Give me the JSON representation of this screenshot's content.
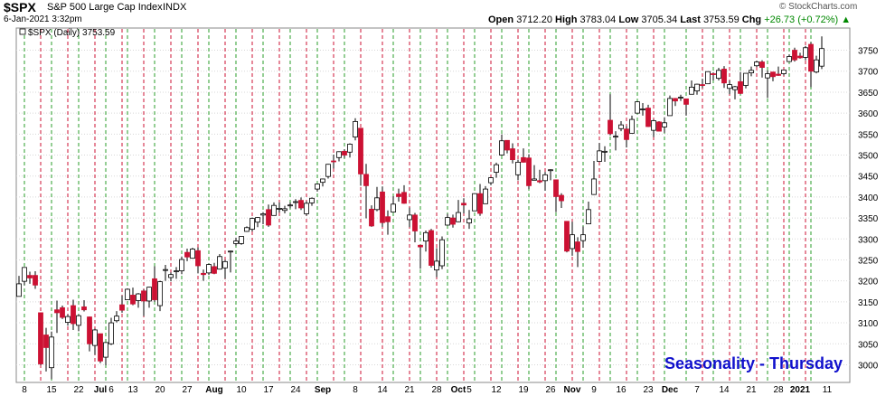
{
  "header": {
    "symbol": "$SPX",
    "name": "S&P 500 Large Cap Index",
    "exchange": "INDX",
    "datetime": "6-Jan-2021 3:32pm",
    "watermark": "© StockCharts.com",
    "ohlc": {
      "open_label": "Open",
      "open": "3712.20",
      "high_label": "High",
      "high": "3783.04",
      "low_label": "Low",
      "low": "3705.34",
      "last_label": "Last",
      "last": "3753.59",
      "chg_label": "Chg",
      "chg": "+26.73 (+0.72%)"
    }
  },
  "chart_data": {
    "type": "candlestick",
    "legend": "$SPX (Daily) 3753.59",
    "annotation": "Seasonality - Thursday",
    "ylim": [
      2960,
      3790
    ],
    "yticks": [
      3000,
      3050,
      3100,
      3150,
      3200,
      3250,
      3300,
      3350,
      3400,
      3450,
      3500,
      3550,
      3600,
      3650,
      3700,
      3750
    ],
    "xtick_labels": [
      "8",
      "15",
      "22",
      "Jul",
      "6",
      "13",
      "20",
      "27",
      "Aug",
      "10",
      "17",
      "24",
      "Sep",
      "8",
      "14",
      "21",
      "28",
      "Oct",
      "5",
      "12",
      "19",
      "26",
      "Nov",
      "9",
      "16",
      "23",
      "Dec",
      "7",
      "14",
      "21",
      "28",
      "2021",
      "11"
    ],
    "colors": {
      "up": "#ffffff",
      "down": "#cc1133",
      "thursday_line": "#cc1133",
      "other_line": "#2a9d2a",
      "annotation": "#1010cc"
    },
    "candles": [
      {
        "date": "2020-06-05",
        "o": 3163,
        "h": 3212,
        "l": 3163,
        "c": 3193
      },
      {
        "date": "2020-06-08",
        "o": 3199,
        "h": 3232,
        "l": 3190,
        "c": 3232
      },
      {
        "date": "2020-06-09",
        "o": 3213,
        "h": 3222,
        "l": 3193,
        "c": 3207
      },
      {
        "date": "2020-06-10",
        "o": 3213,
        "h": 3223,
        "l": 3181,
        "c": 3190
      },
      {
        "date": "2020-06-11",
        "o": 3124,
        "h": 3124,
        "l": 2999,
        "c": 3002
      },
      {
        "date": "2020-06-12",
        "o": 3071,
        "h": 3088,
        "l": 2984,
        "c": 3041
      },
      {
        "date": "2020-06-15",
        "o": 2993,
        "h": 3079,
        "l": 2966,
        "c": 3066
      },
      {
        "date": "2020-06-16",
        "o": 3131,
        "h": 3153,
        "l": 3076,
        "c": 3124
      },
      {
        "date": "2020-06-17",
        "o": 3136,
        "h": 3141,
        "l": 3109,
        "c": 3113
      },
      {
        "date": "2020-06-18",
        "o": 3101,
        "h": 3120,
        "l": 3093,
        "c": 3115
      },
      {
        "date": "2020-06-19",
        "o": 3141,
        "h": 3155,
        "l": 3083,
        "c": 3098
      },
      {
        "date": "2020-06-22",
        "o": 3094,
        "h": 3120,
        "l": 3080,
        "c": 3117
      },
      {
        "date": "2020-06-23",
        "o": 3138,
        "h": 3154,
        "l": 3127,
        "c": 3131
      },
      {
        "date": "2020-06-24",
        "o": 3114,
        "h": 3115,
        "l": 3032,
        "c": 3050
      },
      {
        "date": "2020-06-25",
        "o": 3046,
        "h": 3086,
        "l": 3024,
        "c": 3083
      },
      {
        "date": "2020-06-26",
        "o": 3074,
        "h": 3074,
        "l": 3004,
        "c": 3009
      },
      {
        "date": "2020-06-29",
        "o": 3018,
        "h": 3053,
        "l": 2999,
        "c": 3053
      },
      {
        "date": "2020-06-30",
        "o": 3050,
        "h": 3112,
        "l": 3047,
        "c": 3100
      },
      {
        "date": "2020-07-01",
        "o": 3105,
        "h": 3128,
        "l": 3101,
        "c": 3116
      },
      {
        "date": "2020-07-02",
        "o": 3143,
        "h": 3165,
        "l": 3124,
        "c": 3130
      },
      {
        "date": "2020-07-06",
        "o": 3155,
        "h": 3182,
        "l": 3155,
        "c": 3180
      },
      {
        "date": "2020-07-07",
        "o": 3166,
        "h": 3184,
        "l": 3142,
        "c": 3145
      },
      {
        "date": "2020-07-08",
        "o": 3153,
        "h": 3171,
        "l": 3136,
        "c": 3169
      },
      {
        "date": "2020-07-09",
        "o": 3176,
        "h": 3180,
        "l": 3116,
        "c": 3152
      },
      {
        "date": "2020-07-10",
        "o": 3152,
        "h": 3186,
        "l": 3136,
        "c": 3185
      },
      {
        "date": "2020-07-13",
        "o": 3205,
        "h": 3235,
        "l": 3150,
        "c": 3155
      },
      {
        "date": "2020-07-14",
        "o": 3141,
        "h": 3200,
        "l": 3128,
        "c": 3198
      },
      {
        "date": "2020-07-15",
        "o": 3225,
        "h": 3238,
        "l": 3200,
        "c": 3227
      },
      {
        "date": "2020-07-16",
        "o": 3208,
        "h": 3220,
        "l": 3199,
        "c": 3215
      },
      {
        "date": "2020-07-17",
        "o": 3224,
        "h": 3233,
        "l": 3205,
        "c": 3224
      },
      {
        "date": "2020-07-20",
        "o": 3224,
        "h": 3258,
        "l": 3216,
        "c": 3251
      },
      {
        "date": "2020-07-21",
        "o": 3268,
        "h": 3277,
        "l": 3247,
        "c": 3257
      },
      {
        "date": "2020-07-22",
        "o": 3254,
        "h": 3279,
        "l": 3253,
        "c": 3276
      },
      {
        "date": "2020-07-23",
        "o": 3272,
        "h": 3280,
        "l": 3218,
        "c": 3236
      },
      {
        "date": "2020-07-24",
        "o": 3218,
        "h": 3227,
        "l": 3200,
        "c": 3215
      },
      {
        "date": "2020-07-27",
        "o": 3219,
        "h": 3241,
        "l": 3214,
        "c": 3239
      },
      {
        "date": "2020-07-28",
        "o": 3234,
        "h": 3243,
        "l": 3216,
        "c": 3218
      },
      {
        "date": "2020-07-29",
        "o": 3228,
        "h": 3264,
        "l": 3227,
        "c": 3258
      },
      {
        "date": "2020-07-30",
        "o": 3231,
        "h": 3250,
        "l": 3205,
        "c": 3246
      },
      {
        "date": "2020-07-31",
        "o": 3270,
        "h": 3272,
        "l": 3220,
        "c": 3271
      },
      {
        "date": "2020-08-03",
        "o": 3289,
        "h": 3303,
        "l": 3284,
        "c": 3295
      },
      {
        "date": "2020-08-04",
        "o": 3289,
        "h": 3306,
        "l": 3286,
        "c": 3306
      },
      {
        "date": "2020-08-05",
        "o": 3318,
        "h": 3330,
        "l": 3317,
        "c": 3327
      },
      {
        "date": "2020-08-06",
        "o": 3323,
        "h": 3351,
        "l": 3318,
        "c": 3349
      },
      {
        "date": "2020-08-07",
        "o": 3340,
        "h": 3352,
        "l": 3328,
        "c": 3351
      },
      {
        "date": "2020-08-10",
        "o": 3357,
        "h": 3364,
        "l": 3335,
        "c": 3360
      },
      {
        "date": "2020-08-11",
        "o": 3370,
        "h": 3382,
        "l": 3329,
        "c": 3333
      },
      {
        "date": "2020-08-12",
        "o": 3356,
        "h": 3387,
        "l": 3356,
        "c": 3380
      },
      {
        "date": "2020-08-13",
        "o": 3373,
        "h": 3387,
        "l": 3363,
        "c": 3373
      },
      {
        "date": "2020-08-14",
        "o": 3368,
        "h": 3379,
        "l": 3361,
        "c": 3372
      },
      {
        "date": "2020-08-17",
        "o": 3380,
        "h": 3387,
        "l": 3373,
        "c": 3381
      },
      {
        "date": "2020-08-18",
        "o": 3388,
        "h": 3395,
        "l": 3371,
        "c": 3389
      },
      {
        "date": "2020-08-19",
        "o": 3392,
        "h": 3399,
        "l": 3369,
        "c": 3374
      },
      {
        "date": "2020-08-20",
        "o": 3360,
        "h": 3390,
        "l": 3355,
        "c": 3385
      },
      {
        "date": "2020-08-21",
        "o": 3386,
        "h": 3399,
        "l": 3379,
        "c": 3397
      },
      {
        "date": "2020-08-24",
        "o": 3419,
        "h": 3432,
        "l": 3413,
        "c": 3431
      },
      {
        "date": "2020-08-25",
        "o": 3435,
        "h": 3444,
        "l": 3425,
        "c": 3443
      },
      {
        "date": "2020-08-26",
        "o": 3449,
        "h": 3479,
        "l": 3444,
        "c": 3478
      },
      {
        "date": "2020-08-27",
        "o": 3486,
        "h": 3501,
        "l": 3468,
        "c": 3485
      },
      {
        "date": "2020-08-28",
        "o": 3494,
        "h": 3509,
        "l": 3485,
        "c": 3508
      },
      {
        "date": "2020-08-31",
        "o": 3509,
        "h": 3514,
        "l": 3493,
        "c": 3500
      },
      {
        "date": "2020-09-01",
        "o": 3507,
        "h": 3528,
        "l": 3494,
        "c": 3526
      },
      {
        "date": "2020-09-02",
        "o": 3543,
        "h": 3588,
        "l": 3535,
        "c": 3580
      },
      {
        "date": "2020-09-03",
        "o": 3564,
        "h": 3564,
        "l": 3427,
        "c": 3455
      },
      {
        "date": "2020-09-04",
        "o": 3454,
        "h": 3479,
        "l": 3349,
        "c": 3427
      },
      {
        "date": "2020-09-08",
        "o": 3371,
        "h": 3380,
        "l": 3329,
        "c": 3331
      },
      {
        "date": "2020-09-09",
        "o": 3370,
        "h": 3424,
        "l": 3366,
        "c": 3398
      },
      {
        "date": "2020-09-10",
        "o": 3412,
        "h": 3425,
        "l": 3329,
        "c": 3339
      },
      {
        "date": "2020-09-11",
        "o": 3353,
        "h": 3368,
        "l": 3310,
        "c": 3341
      },
      {
        "date": "2020-09-14",
        "o": 3364,
        "h": 3402,
        "l": 3363,
        "c": 3383
      },
      {
        "date": "2020-09-15",
        "o": 3407,
        "h": 3420,
        "l": 3389,
        "c": 3401
      },
      {
        "date": "2020-09-16",
        "o": 3411,
        "h": 3428,
        "l": 3384,
        "c": 3385
      },
      {
        "date": "2020-09-17",
        "o": 3346,
        "h": 3375,
        "l": 3328,
        "c": 3357
      },
      {
        "date": "2020-09-18",
        "o": 3357,
        "h": 3362,
        "l": 3292,
        "c": 3319
      },
      {
        "date": "2020-09-21",
        "o": 3285,
        "h": 3285,
        "l": 3229,
        "c": 3281
      },
      {
        "date": "2020-09-22",
        "o": 3295,
        "h": 3320,
        "l": 3270,
        "c": 3315
      },
      {
        "date": "2020-09-23",
        "o": 3320,
        "h": 3324,
        "l": 3232,
        "c": 3237
      },
      {
        "date": "2020-09-24",
        "o": 3226,
        "h": 3278,
        "l": 3209,
        "c": 3247
      },
      {
        "date": "2020-09-25",
        "o": 3236,
        "h": 3306,
        "l": 3228,
        "c": 3298
      },
      {
        "date": "2020-09-28",
        "o": 3333,
        "h": 3360,
        "l": 3332,
        "c": 3351
      },
      {
        "date": "2020-09-29",
        "o": 3350,
        "h": 3358,
        "l": 3327,
        "c": 3335
      },
      {
        "date": "2020-09-30",
        "o": 3341,
        "h": 3393,
        "l": 3340,
        "c": 3363
      },
      {
        "date": "2020-10-01",
        "o": 3385,
        "h": 3397,
        "l": 3361,
        "c": 3381
      },
      {
        "date": "2020-10-02",
        "o": 3338,
        "h": 3369,
        "l": 3324,
        "c": 3348
      },
      {
        "date": "2020-10-05",
        "o": 3367,
        "h": 3409,
        "l": 3367,
        "c": 3408
      },
      {
        "date": "2020-10-06",
        "o": 3408,
        "h": 3431,
        "l": 3355,
        "c": 3361
      },
      {
        "date": "2020-10-07",
        "o": 3384,
        "h": 3426,
        "l": 3384,
        "c": 3419
      },
      {
        "date": "2020-10-08",
        "o": 3434,
        "h": 3447,
        "l": 3428,
        "c": 3446
      },
      {
        "date": "2020-10-09",
        "o": 3459,
        "h": 3482,
        "l": 3446,
        "c": 3477
      },
      {
        "date": "2020-10-12",
        "o": 3500,
        "h": 3549,
        "l": 3499,
        "c": 3534
      },
      {
        "date": "2020-10-13",
        "o": 3535,
        "h": 3535,
        "l": 3504,
        "c": 3512
      },
      {
        "date": "2020-10-14",
        "o": 3515,
        "h": 3528,
        "l": 3480,
        "c": 3489
      },
      {
        "date": "2020-10-15",
        "o": 3453,
        "h": 3489,
        "l": 3440,
        "c": 3483
      },
      {
        "date": "2020-10-16",
        "o": 3494,
        "h": 3516,
        "l": 3482,
        "c": 3483
      },
      {
        "date": "2020-10-19",
        "o": 3493,
        "h": 3502,
        "l": 3419,
        "c": 3427
      },
      {
        "date": "2020-10-20",
        "o": 3440,
        "h": 3476,
        "l": 3440,
        "c": 3443
      },
      {
        "date": "2020-10-21",
        "o": 3439,
        "h": 3465,
        "l": 3433,
        "c": 3436
      },
      {
        "date": "2020-10-22",
        "o": 3439,
        "h": 3460,
        "l": 3415,
        "c": 3453
      },
      {
        "date": "2020-10-23",
        "o": 3464,
        "h": 3466,
        "l": 3440,
        "c": 3465
      },
      {
        "date": "2020-10-26",
        "o": 3441,
        "h": 3441,
        "l": 3364,
        "c": 3401
      },
      {
        "date": "2020-10-27",
        "o": 3404,
        "h": 3409,
        "l": 3374,
        "c": 3391
      },
      {
        "date": "2020-10-28",
        "o": 3342,
        "h": 3342,
        "l": 3268,
        "c": 3271
      },
      {
        "date": "2020-10-29",
        "o": 3277,
        "h": 3341,
        "l": 3260,
        "c": 3310
      },
      {
        "date": "2020-10-30",
        "o": 3293,
        "h": 3304,
        "l": 3233,
        "c": 3270
      },
      {
        "date": "2020-11-02",
        "o": 3296,
        "h": 3330,
        "l": 3279,
        "c": 3310
      },
      {
        "date": "2020-11-03",
        "o": 3336,
        "h": 3389,
        "l": 3336,
        "c": 3370
      },
      {
        "date": "2020-11-04",
        "o": 3406,
        "h": 3486,
        "l": 3405,
        "c": 3443
      },
      {
        "date": "2020-11-05",
        "o": 3485,
        "h": 3529,
        "l": 3485,
        "c": 3510
      },
      {
        "date": "2020-11-06",
        "o": 3508,
        "h": 3521,
        "l": 3484,
        "c": 3509
      },
      {
        "date": "2020-11-09",
        "o": 3583,
        "h": 3645,
        "l": 3547,
        "c": 3551
      },
      {
        "date": "2020-11-10",
        "o": 3543,
        "h": 3557,
        "l": 3511,
        "c": 3545
      },
      {
        "date": "2020-11-11",
        "o": 3563,
        "h": 3581,
        "l": 3557,
        "c": 3572
      },
      {
        "date": "2020-11-12",
        "o": 3562,
        "h": 3569,
        "l": 3518,
        "c": 3537
      },
      {
        "date": "2020-11-13",
        "o": 3552,
        "h": 3594,
        "l": 3552,
        "c": 3585
      },
      {
        "date": "2020-11-16",
        "o": 3600,
        "h": 3628,
        "l": 3600,
        "c": 3627
      },
      {
        "date": "2020-11-17",
        "o": 3610,
        "h": 3624,
        "l": 3594,
        "c": 3610
      },
      {
        "date": "2020-11-18",
        "o": 3612,
        "h": 3620,
        "l": 3567,
        "c": 3568
      },
      {
        "date": "2020-11-19",
        "o": 3559,
        "h": 3585,
        "l": 3543,
        "c": 3582
      },
      {
        "date": "2020-11-20",
        "o": 3579,
        "h": 3581,
        "l": 3556,
        "c": 3557
      },
      {
        "date": "2020-11-23",
        "o": 3567,
        "h": 3590,
        "l": 3553,
        "c": 3577
      },
      {
        "date": "2020-11-24",
        "o": 3594,
        "h": 3642,
        "l": 3594,
        "c": 3635
      },
      {
        "date": "2020-11-25",
        "o": 3635,
        "h": 3636,
        "l": 3617,
        "c": 3629
      },
      {
        "date": "2020-11-27",
        "o": 3638,
        "h": 3644,
        "l": 3629,
        "c": 3638
      },
      {
        "date": "2020-11-30",
        "o": 3634,
        "h": 3634,
        "l": 3594,
        "c": 3621
      },
      {
        "date": "2020-12-01",
        "o": 3645,
        "h": 3678,
        "l": 3645,
        "c": 3662
      },
      {
        "date": "2020-12-02",
        "o": 3653,
        "h": 3670,
        "l": 3644,
        "c": 3669
      },
      {
        "date": "2020-12-03",
        "o": 3668,
        "h": 3682,
        "l": 3660,
        "c": 3666
      },
      {
        "date": "2020-12-04",
        "o": 3670,
        "h": 3699,
        "l": 3670,
        "c": 3699
      },
      {
        "date": "2020-12-07",
        "o": 3694,
        "h": 3697,
        "l": 3678,
        "c": 3692
      },
      {
        "date": "2020-12-08",
        "o": 3683,
        "h": 3708,
        "l": 3678,
        "c": 3702
      },
      {
        "date": "2020-12-09",
        "o": 3705,
        "h": 3712,
        "l": 3660,
        "c": 3672
      },
      {
        "date": "2020-12-10",
        "o": 3659,
        "h": 3678,
        "l": 3645,
        "c": 3668
      },
      {
        "date": "2020-12-11",
        "o": 3656,
        "h": 3665,
        "l": 3633,
        "c": 3663
      },
      {
        "date": "2020-12-14",
        "o": 3675,
        "h": 3698,
        "l": 3645,
        "c": 3647
      },
      {
        "date": "2020-12-15",
        "o": 3666,
        "h": 3695,
        "l": 3659,
        "c": 3695
      },
      {
        "date": "2020-12-16",
        "o": 3696,
        "h": 3711,
        "l": 3688,
        "c": 3702
      },
      {
        "date": "2020-12-17",
        "o": 3713,
        "h": 3725,
        "l": 3710,
        "c": 3722
      },
      {
        "date": "2020-12-18",
        "o": 3722,
        "h": 3726,
        "l": 3685,
        "c": 3709
      },
      {
        "date": "2020-12-21",
        "o": 3684,
        "h": 3702,
        "l": 3636,
        "c": 3694
      },
      {
        "date": "2020-12-22",
        "o": 3698,
        "h": 3698,
        "l": 3676,
        "c": 3687
      },
      {
        "date": "2020-12-23",
        "o": 3693,
        "h": 3711,
        "l": 3689,
        "c": 3690
      },
      {
        "date": "2020-12-24",
        "o": 3694,
        "h": 3703,
        "l": 3690,
        "c": 3703
      },
      {
        "date": "2020-12-28",
        "o": 3723,
        "h": 3740,
        "l": 3723,
        "c": 3735
      },
      {
        "date": "2020-12-29",
        "o": 3750,
        "h": 3756,
        "l": 3723,
        "c": 3727
      },
      {
        "date": "2020-12-30",
        "o": 3736,
        "h": 3744,
        "l": 3730,
        "c": 3732
      },
      {
        "date": "2020-12-31",
        "o": 3733,
        "h": 3760,
        "l": 3726,
        "c": 3756
      },
      {
        "date": "2021-01-04",
        "o": 3764,
        "h": 3769,
        "l": 3662,
        "c": 3700
      },
      {
        "date": "2021-01-05",
        "o": 3698,
        "h": 3737,
        "l": 3695,
        "c": 3727
      },
      {
        "date": "2021-01-06",
        "o": 3712,
        "h": 3783,
        "l": 3705,
        "c": 3754
      }
    ]
  }
}
